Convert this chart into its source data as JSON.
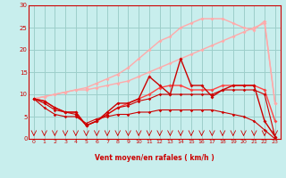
{
  "background_color": "#c8eeed",
  "grid_color": "#9dcfca",
  "xlabel": "Vent moyen/en rafales ( km/h )",
  "xlabel_color": "#cc0000",
  "tick_color": "#cc0000",
  "xlim": [
    -0.5,
    23.5
  ],
  "ylim": [
    0,
    30
  ],
  "yticks": [
    0,
    5,
    10,
    15,
    20,
    25,
    30
  ],
  "xticks": [
    0,
    1,
    2,
    3,
    4,
    5,
    6,
    7,
    8,
    9,
    10,
    11,
    12,
    13,
    14,
    15,
    16,
    17,
    18,
    19,
    20,
    21,
    22,
    23
  ],
  "lines": [
    {
      "x": [
        0,
        1,
        2,
        3,
        4,
        5,
        6,
        7,
        8,
        9,
        10,
        11,
        12,
        13,
        14,
        15,
        16,
        17,
        18,
        19,
        20,
        21,
        22,
        23
      ],
      "y": [
        9,
        9.5,
        10,
        10.5,
        11,
        11,
        11.5,
        12,
        12.5,
        13,
        14,
        15,
        16,
        17,
        18,
        19,
        20,
        21,
        22,
        23,
        24,
        25,
        26,
        8
      ],
      "color": "#ffaaaa",
      "lw": 1.0,
      "marker": "D",
      "ms": 2.0
    },
    {
      "x": [
        0,
        1,
        2,
        3,
        4,
        5,
        6,
        7,
        8,
        9,
        10,
        11,
        12,
        13,
        14,
        15,
        16,
        17,
        18,
        19,
        20,
        21,
        22,
        23
      ],
      "y": [
        9,
        9.5,
        10,
        10.5,
        11,
        11.5,
        12.5,
        13.5,
        14.5,
        16,
        18,
        20,
        22,
        23,
        25,
        26,
        27,
        27,
        27,
        26,
        25,
        24.5,
        26.5,
        8
      ],
      "color": "#ffaaaa",
      "lw": 1.0,
      "marker": "D",
      "ms": 2.0
    },
    {
      "x": [
        0,
        1,
        2,
        3,
        4,
        5,
        6,
        7,
        8,
        9,
        10,
        11,
        12,
        13,
        14,
        15,
        16,
        17,
        18,
        19,
        20,
        21,
        22,
        23
      ],
      "y": [
        9,
        8.5,
        7,
        6,
        6,
        3,
        4,
        5.5,
        7,
        8,
        9,
        10,
        11.5,
        12,
        12,
        11,
        11,
        11,
        12,
        12,
        12,
        12,
        11,
        4
      ],
      "color": "#ff4444",
      "lw": 1.0,
      "marker": "D",
      "ms": 2.0
    },
    {
      "x": [
        0,
        1,
        2,
        3,
        4,
        5,
        6,
        7,
        8,
        9,
        10,
        11,
        12,
        13,
        14,
        15,
        16,
        17,
        18,
        19,
        20,
        21,
        22,
        23
      ],
      "y": [
        9,
        8.5,
        7,
        6,
        6,
        3,
        4,
        6,
        8,
        8,
        9,
        14,
        12,
        10,
        18,
        12,
        12,
        9.5,
        11,
        12,
        12,
        12,
        4,
        0.5
      ],
      "color": "#cc0000",
      "lw": 1.0,
      "marker": "D",
      "ms": 2.0
    },
    {
      "x": [
        0,
        1,
        2,
        3,
        4,
        5,
        6,
        7,
        8,
        9,
        10,
        11,
        12,
        13,
        14,
        15,
        16,
        17,
        18,
        19,
        20,
        21,
        22,
        23
      ],
      "y": [
        9,
        8,
        6.5,
        6,
        5.5,
        3,
        4,
        5.5,
        7,
        7.5,
        8.5,
        9,
        10,
        10,
        10,
        10,
        10,
        10,
        11,
        11,
        11,
        11,
        10,
        0.5
      ],
      "color": "#cc0000",
      "lw": 0.8,
      "marker": "D",
      "ms": 1.8
    },
    {
      "x": [
        0,
        1,
        2,
        3,
        4,
        5,
        6,
        7,
        8,
        9,
        10,
        11,
        12,
        13,
        14,
        15,
        16,
        17,
        18,
        19,
        20,
        21,
        22,
        23
      ],
      "y": [
        9,
        7,
        5.5,
        5,
        5,
        3.5,
        4.5,
        5,
        5.5,
        5.5,
        6,
        6,
        6.5,
        6.5,
        6.5,
        6.5,
        6.5,
        6.5,
        6,
        5.5,
        5,
        4,
        2,
        0
      ],
      "color": "#cc0000",
      "lw": 0.8,
      "marker": "D",
      "ms": 1.8
    }
  ],
  "arrow_color": "#cc0000"
}
